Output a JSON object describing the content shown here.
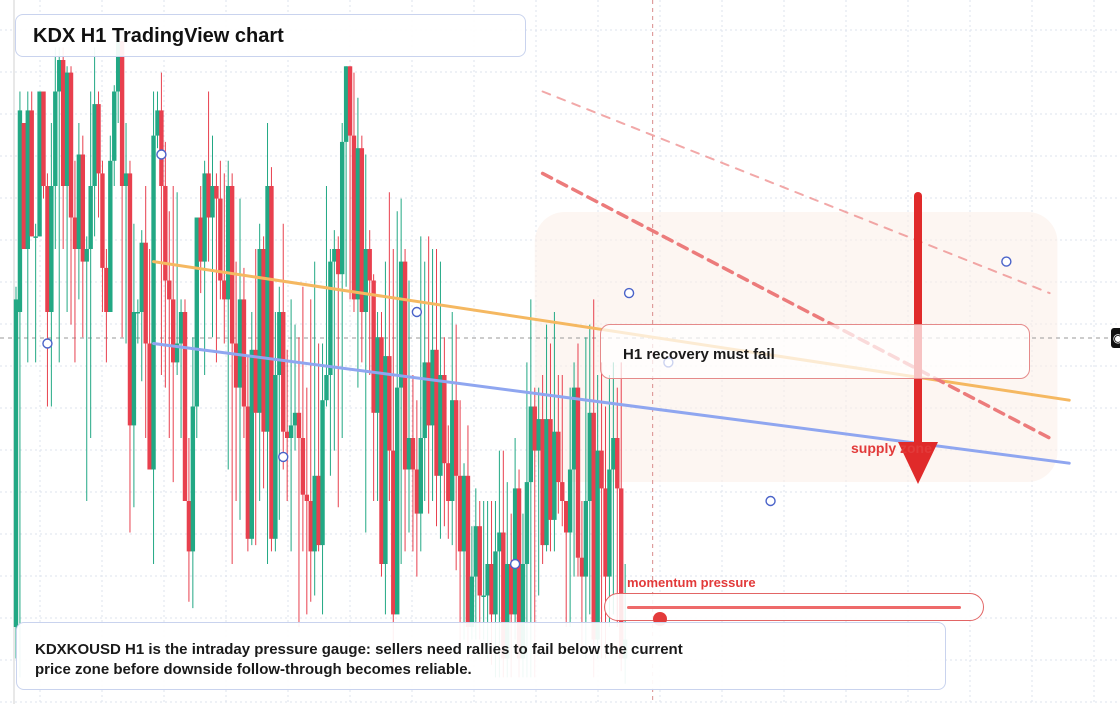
{
  "title": "KDX H1 TradingView chart",
  "callout": "H1 recovery must fail",
  "supply_label": "supply zone",
  "momentum": {
    "label": "momentum pressure",
    "level": 0.1
  },
  "summary": "KDXKOUSD H1 is the intraday pressure gauge: sellers need rallies to fail below the current price zone before downside follow-through becomes reliable.",
  "colors": {
    "bull": "#22a884",
    "bear": "#e8404e",
    "trend_orange": "#f5b861",
    "trend_blue": "#8fa6f0",
    "dash_red": "#ec7b7b",
    "arrow": "#e02a2a",
    "zone": "#fbeee7"
  },
  "corner_icon": "camera-icon",
  "chart_data": {
    "type": "candlestick",
    "timeframe": "H1",
    "symbol": "KDXKOUSD",
    "ylim": [
      0,
      100
    ],
    "candles": [
      [
        10,
        62,
        64,
        5
      ],
      [
        60,
        92,
        95,
        2
      ],
      [
        90,
        70,
        90,
        72
      ],
      [
        70,
        92,
        95,
        52
      ],
      [
        92,
        72,
        95,
        72
      ],
      [
        72,
        72,
        74,
        52
      ],
      [
        72,
        95,
        95,
        85
      ],
      [
        95,
        80,
        95,
        78
      ],
      [
        80,
        60,
        82,
        45
      ],
      [
        60,
        80,
        90,
        45
      ],
      [
        80,
        95,
        102,
        70
      ],
      [
        95,
        100,
        102,
        52
      ],
      [
        100,
        80,
        102,
        70
      ],
      [
        80,
        98,
        99,
        60
      ],
      [
        98,
        75,
        99,
        58
      ],
      [
        75,
        70,
        84,
        52
      ],
      [
        70,
        85,
        90,
        62
      ],
      [
        85,
        68,
        88,
        56
      ],
      [
        68,
        70,
        72,
        30
      ],
      [
        70,
        80,
        95,
        40
      ],
      [
        80,
        93,
        102,
        72
      ],
      [
        93,
        82,
        95,
        75
      ],
      [
        82,
        67,
        84,
        60
      ],
      [
        67,
        60,
        70,
        52
      ],
      [
        60,
        84,
        88,
        62
      ],
      [
        84,
        95,
        96,
        80
      ],
      [
        95,
        103,
        104,
        90
      ],
      [
        103,
        80,
        103,
        56
      ],
      [
        80,
        82,
        90,
        55
      ],
      [
        82,
        42,
        84,
        25
      ],
      [
        42,
        60,
        74,
        29
      ],
      [
        60,
        60,
        62,
        55
      ],
      [
        60,
        71,
        73,
        49
      ],
      [
        71,
        55,
        80,
        40
      ],
      [
        55,
        35,
        70,
        35
      ],
      [
        35,
        88,
        95,
        20
      ],
      [
        88,
        92,
        95,
        86
      ],
      [
        92,
        80,
        98,
        50
      ],
      [
        80,
        65,
        87,
        48
      ],
      [
        65,
        62,
        76,
        40
      ],
      [
        62,
        52,
        80,
        33
      ],
      [
        52,
        55,
        79,
        50
      ],
      [
        55,
        60,
        62,
        40
      ],
      [
        60,
        30,
        62,
        30
      ],
      [
        30,
        22,
        40,
        14
      ],
      [
        22,
        45,
        56,
        13
      ],
      [
        45,
        75,
        75,
        40
      ],
      [
        75,
        68,
        80,
        63
      ],
      [
        68,
        82,
        84,
        50
      ],
      [
        82,
        75,
        95,
        68
      ],
      [
        75,
        80,
        88,
        56
      ],
      [
        80,
        78,
        82,
        52
      ],
      [
        78,
        65,
        84,
        62
      ],
      [
        65,
        62,
        82,
        55
      ],
      [
        62,
        80,
        84,
        35
      ],
      [
        80,
        55,
        82,
        20
      ],
      [
        55,
        48,
        68,
        30
      ],
      [
        48,
        62,
        78,
        27
      ],
      [
        62,
        45,
        67,
        40
      ],
      [
        45,
        24,
        53,
        22
      ],
      [
        24,
        54,
        60,
        23
      ],
      [
        54,
        44,
        70,
        23
      ],
      [
        44,
        70,
        74,
        30
      ],
      [
        70,
        41,
        72,
        32
      ],
      [
        41,
        80,
        90,
        20
      ],
      [
        80,
        24,
        83,
        22
      ],
      [
        24,
        50,
        60,
        22
      ],
      [
        50,
        60,
        64,
        27
      ],
      [
        60,
        41,
        74,
        35
      ],
      [
        41,
        40,
        54,
        30
      ],
      [
        40,
        42,
        62,
        22
      ],
      [
        42,
        44,
        58,
        38
      ],
      [
        44,
        40,
        56,
        10
      ],
      [
        40,
        31,
        64,
        22
      ],
      [
        31,
        30,
        48,
        12
      ],
      [
        30,
        22,
        62,
        14
      ],
      [
        22,
        34,
        68,
        15
      ],
      [
        34,
        23,
        55,
        22
      ],
      [
        23,
        46,
        55,
        12
      ],
      [
        46,
        50,
        80,
        45
      ],
      [
        50,
        68,
        70,
        34
      ],
      [
        68,
        70,
        73,
        38
      ],
      [
        70,
        66,
        72,
        29
      ],
      [
        66,
        87,
        90,
        40
      ],
      [
        87,
        99,
        99,
        64
      ],
      [
        99,
        88,
        99,
        62
      ],
      [
        88,
        62,
        98,
        60
      ],
      [
        62,
        86,
        94,
        48
      ],
      [
        86,
        60,
        88,
        52
      ],
      [
        60,
        70,
        85,
        25
      ],
      [
        70,
        65,
        73,
        50
      ],
      [
        65,
        44,
        66,
        30
      ],
      [
        44,
        56,
        60,
        30
      ],
      [
        56,
        20,
        60,
        18
      ],
      [
        20,
        53,
        68,
        12
      ],
      [
        53,
        38,
        79,
        30
      ],
      [
        38,
        12,
        70,
        3
      ],
      [
        12,
        48,
        76,
        14
      ],
      [
        48,
        68,
        78,
        20
      ],
      [
        68,
        35,
        70,
        22
      ],
      [
        35,
        40,
        65,
        25
      ],
      [
        40,
        35,
        50,
        22
      ],
      [
        35,
        28,
        46,
        18
      ],
      [
        28,
        40,
        72,
        22
      ],
      [
        40,
        52,
        68,
        30
      ],
      [
        52,
        42,
        72,
        28
      ],
      [
        42,
        54,
        70,
        30
      ],
      [
        54,
        34,
        70,
        26
      ],
      [
        34,
        50,
        68,
        24
      ],
      [
        50,
        36,
        56,
        26
      ],
      [
        36,
        30,
        42,
        24
      ],
      [
        30,
        46,
        60,
        23
      ],
      [
        46,
        34,
        58,
        19
      ],
      [
        34,
        22,
        46,
        7
      ],
      [
        22,
        34,
        36,
        8
      ],
      [
        34,
        10,
        42,
        5
      ],
      [
        10,
        18,
        26,
        8
      ],
      [
        18,
        26,
        32,
        8
      ],
      [
        26,
        15,
        30,
        8
      ],
      [
        15,
        15,
        30,
        8
      ],
      [
        15,
        20,
        30,
        5
      ],
      [
        20,
        12,
        30,
        4
      ],
      [
        12,
        22,
        30,
        2
      ],
      [
        22,
        25,
        38,
        2
      ],
      [
        25,
        5,
        38,
        2
      ],
      [
        5,
        20,
        33,
        2
      ],
      [
        20,
        12,
        28,
        2
      ],
      [
        12,
        32,
        40,
        8
      ],
      [
        32,
        5,
        35,
        2
      ],
      [
        5,
        20,
        28,
        2
      ],
      [
        20,
        33,
        52,
        2
      ],
      [
        33,
        45,
        62,
        2
      ],
      [
        45,
        38,
        48,
        2
      ],
      [
        38,
        43,
        48,
        15
      ],
      [
        43,
        23,
        50,
        20
      ],
      [
        23,
        43,
        58,
        22
      ],
      [
        43,
        27,
        55,
        22
      ],
      [
        27,
        41,
        60,
        22
      ],
      [
        41,
        33,
        50,
        28
      ],
      [
        33,
        30,
        50,
        26
      ],
      [
        30,
        25,
        30,
        10
      ],
      [
        25,
        35,
        48,
        10
      ],
      [
        35,
        48,
        52,
        18
      ],
      [
        48,
        21,
        55,
        18
      ],
      [
        21,
        18,
        30,
        7
      ],
      [
        18,
        30,
        56,
        5
      ],
      [
        30,
        44,
        58,
        12
      ],
      [
        44,
        8,
        62,
        2
      ],
      [
        8,
        38,
        50,
        5
      ],
      [
        38,
        32,
        52,
        5
      ],
      [
        32,
        18,
        45,
        5
      ],
      [
        18,
        35,
        50,
        10
      ],
      [
        35,
        40,
        52,
        12
      ],
      [
        40,
        32,
        48,
        10
      ],
      [
        32,
        5,
        52,
        3
      ],
      [
        5,
        8,
        20,
        1
      ]
    ],
    "markers": [
      [
        8,
        55
      ],
      [
        37,
        85
      ],
      [
        68,
        37
      ],
      [
        102,
        60
      ],
      [
        127,
        20
      ],
      [
        156,
        63
      ],
      [
        166,
        52
      ],
      [
        192,
        30
      ],
      [
        252,
        68
      ]
    ],
    "trendlines": [
      {
        "color": "orange",
        "from": [
          35,
          68
        ],
        "to": [
          268,
          46
        ]
      },
      {
        "color": "blue",
        "from": [
          35,
          55
        ],
        "to": [
          268,
          36
        ]
      },
      {
        "color": "red-dashed",
        "from": [
          134,
          82
        ],
        "to": [
          263,
          40
        ]
      },
      {
        "color": "light-red-dashed",
        "from": [
          134,
          95
        ],
        "to": [
          263,
          63
        ]
      }
    ],
    "vline_x": 162,
    "hline_y": 50
  }
}
